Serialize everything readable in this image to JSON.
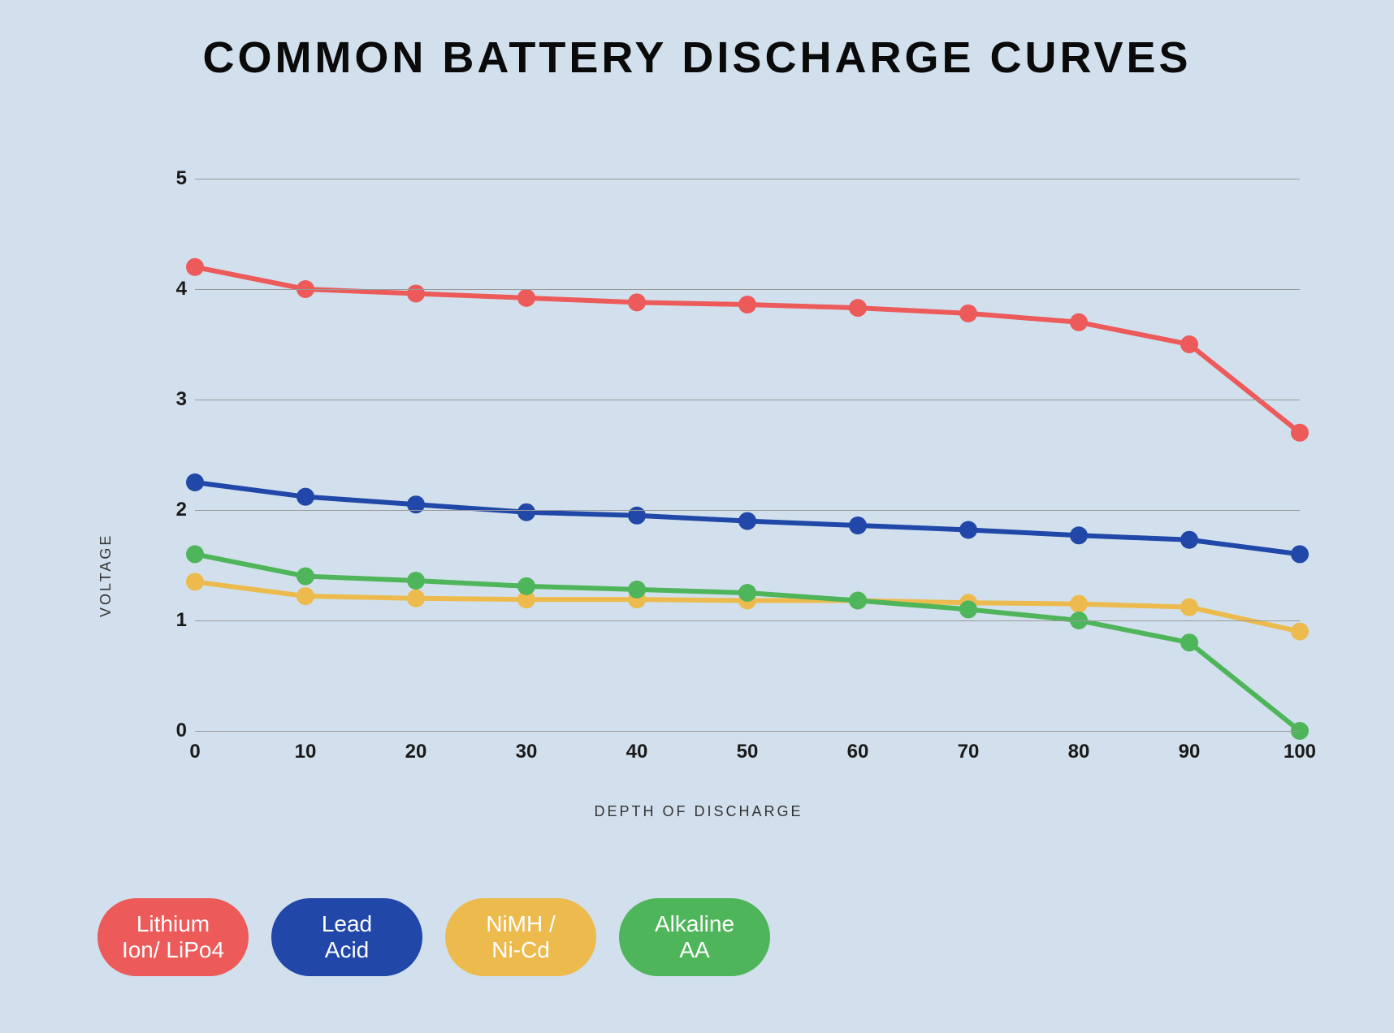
{
  "title": "COMMON BATTERY DISCHARGE CURVES",
  "title_fontsize": 54,
  "background_color": "#d1e0ec",
  "chart": {
    "type": "line",
    "ylabel": "VOLTAGE",
    "xlabel": "DEPTH OF DISCHARGE",
    "label_fontsize": 18,
    "tick_fontsize": 24,
    "ylim": [
      0,
      5
    ],
    "ytick_step": 1,
    "xlim": [
      0,
      100
    ],
    "xtick_step": 10,
    "grid_color": "#999999",
    "line_width": 6,
    "marker_radius": 11,
    "x_values": [
      0,
      10,
      20,
      30,
      40,
      50,
      60,
      70,
      80,
      90,
      100
    ],
    "series": [
      {
        "name": "Lithium Ion/ LiPo4",
        "color": "#ed5a5a",
        "values": [
          4.2,
          4.0,
          3.96,
          3.92,
          3.88,
          3.86,
          3.83,
          3.78,
          3.7,
          3.5,
          2.7
        ],
        "legend_line1": "Lithium",
        "legend_line2": "Ion/ LiPo4"
      },
      {
        "name": "Lead Acid",
        "color": "#2147a8",
        "values": [
          2.25,
          2.12,
          2.05,
          1.98,
          1.95,
          1.9,
          1.86,
          1.82,
          1.77,
          1.73,
          1.6
        ],
        "legend_line1": "Lead",
        "legend_line2": "Acid"
      },
      {
        "name": "NiMH / Ni-Cd",
        "color": "#edbb4d",
        "values": [
          1.35,
          1.22,
          1.2,
          1.19,
          1.19,
          1.18,
          1.18,
          1.16,
          1.15,
          1.12,
          0.9
        ],
        "legend_line1": "NiMH /",
        "legend_line2": "Ni-Cd"
      },
      {
        "name": "Alkaline AA",
        "color": "#4fb55a",
        "values": [
          1.6,
          1.4,
          1.36,
          1.31,
          1.28,
          1.25,
          1.18,
          1.1,
          1.0,
          0.8,
          0.0
        ],
        "legend_line1": "Alkaline",
        "legend_line2": "AA"
      }
    ]
  }
}
